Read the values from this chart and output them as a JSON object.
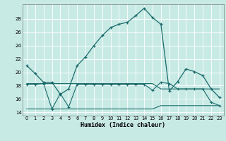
{
  "xlabel": "Humidex (Indice chaleur)",
  "background_color": "#c8eae5",
  "grid_color": "#ffffff",
  "line_color": "#1a6b6b",
  "xlim": [
    -0.5,
    23.5
  ],
  "ylim": [
    13.5,
    30.2
  ],
  "yticks": [
    14,
    16,
    18,
    20,
    22,
    24,
    26,
    28
  ],
  "xticks": [
    0,
    1,
    2,
    3,
    4,
    5,
    6,
    7,
    8,
    9,
    10,
    11,
    12,
    13,
    14,
    15,
    16,
    17,
    18,
    19,
    20,
    21,
    22,
    23
  ],
  "main_x": [
    0,
    1,
    2,
    3,
    4,
    5,
    6,
    7,
    8,
    9,
    10,
    11,
    12,
    13,
    14,
    15,
    16,
    17,
    18,
    19,
    20,
    21,
    22,
    23
  ],
  "main_y": [
    21.0,
    19.8,
    18.5,
    18.5,
    16.7,
    17.5,
    21.0,
    22.3,
    24.0,
    25.5,
    26.7,
    27.2,
    27.5,
    28.5,
    29.6,
    28.2,
    27.2,
    17.2,
    18.6,
    20.5,
    20.1,
    19.5,
    17.5,
    16.2
  ],
  "flat1_x": [
    0,
    1,
    2,
    3,
    4,
    5,
    6,
    7,
    8,
    9,
    10,
    11,
    12,
    13,
    14,
    15,
    16,
    17,
    18,
    19,
    20,
    21,
    22,
    23
  ],
  "flat1_y": [
    18.3,
    18.3,
    18.3,
    18.3,
    18.3,
    18.3,
    18.3,
    18.3,
    18.3,
    18.3,
    18.3,
    18.3,
    18.3,
    18.3,
    18.3,
    18.3,
    17.5,
    17.5,
    17.5,
    17.5,
    17.5,
    17.5,
    17.5,
    17.5
  ],
  "flat2_x": [
    0,
    1,
    2,
    3,
    4,
    5,
    6,
    7,
    8,
    9,
    10,
    11,
    12,
    13,
    14,
    15,
    16,
    17,
    18,
    19,
    20,
    21,
    22,
    23
  ],
  "flat2_y": [
    14.5,
    14.5,
    14.5,
    14.5,
    14.5,
    14.5,
    14.5,
    14.5,
    14.5,
    14.5,
    14.5,
    14.5,
    14.5,
    14.5,
    14.5,
    14.5,
    15.0,
    15.0,
    15.0,
    15.0,
    15.0,
    15.0,
    15.0,
    15.0
  ],
  "sub_x": [
    0,
    1,
    2,
    3,
    4,
    5,
    6,
    7,
    8,
    9,
    10,
    11,
    12,
    13,
    14,
    15,
    16,
    17,
    18,
    19,
    20,
    21,
    22,
    23
  ],
  "sub_y": [
    18.2,
    18.2,
    18.3,
    14.5,
    16.8,
    14.8,
    18.2,
    18.2,
    18.2,
    18.2,
    18.2,
    18.2,
    18.2,
    18.2,
    18.2,
    17.3,
    18.5,
    18.3,
    17.5,
    17.5,
    17.5,
    17.5,
    15.5,
    15.0
  ]
}
